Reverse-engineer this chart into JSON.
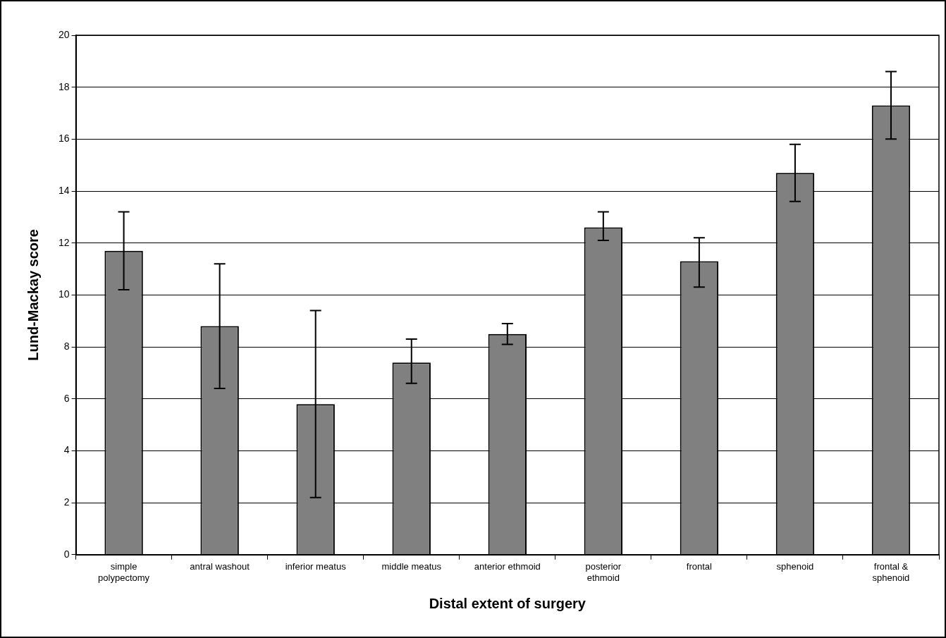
{
  "chart_data": {
    "type": "bar",
    "xlabel": "Distal extent of surgery",
    "ylabel": "Lund-Mackay score",
    "categories": [
      "simple polypectomy",
      "antral washout",
      "inferior meatus",
      "middle meatus",
      "anterior ethmoid",
      "posterior ethmoid",
      "frontal",
      "sphenoid",
      "frontal & sphenoid"
    ],
    "values": [
      11.7,
      8.8,
      5.8,
      7.4,
      8.5,
      12.6,
      11.3,
      14.7,
      17.3
    ],
    "errors": [
      [
        10.2,
        13.2
      ],
      [
        6.4,
        11.2
      ],
      [
        2.2,
        9.4
      ],
      [
        6.6,
        8.3
      ],
      [
        8.1,
        8.9
      ],
      [
        12.1,
        13.2
      ],
      [
        10.3,
        12.2
      ],
      [
        13.6,
        15.8
      ],
      [
        16.0,
        18.6
      ]
    ],
    "color": "#808080",
    "ylim": [
      0,
      20
    ],
    "yticks": [
      0,
      2,
      4,
      6,
      8,
      10,
      12,
      14,
      16,
      18,
      20
    ],
    "grid": "y",
    "legend": false
  }
}
